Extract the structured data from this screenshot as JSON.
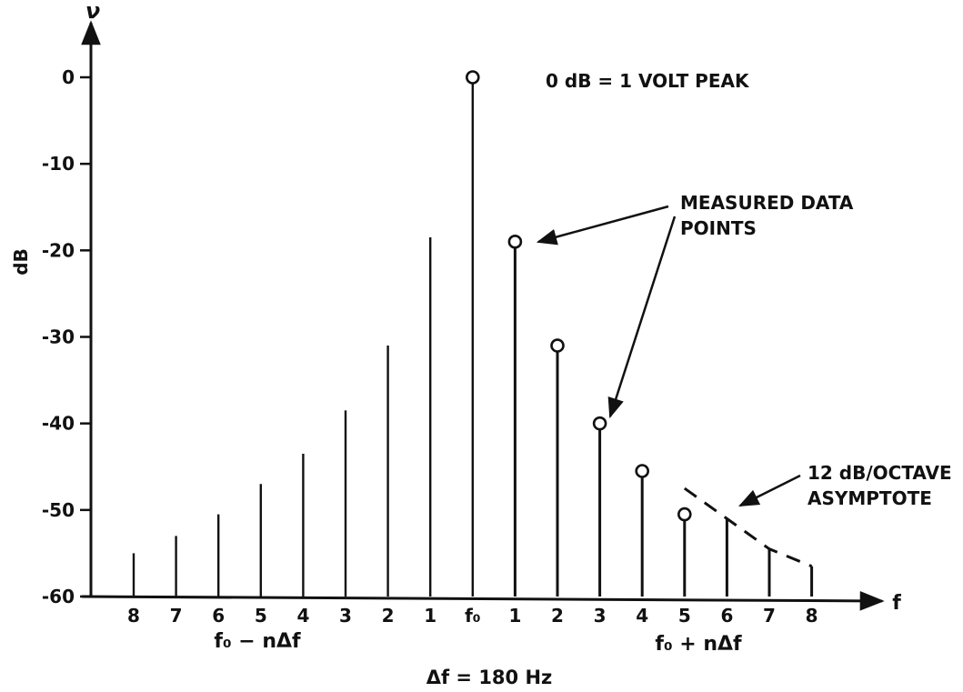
{
  "chart_data": {
    "type": "bar",
    "ylabel": "dB",
    "y_axis_symbol": "ν",
    "x_axis_symbol": "f",
    "ylim": [
      -60,
      0
    ],
    "y_ticks": [
      0,
      -10,
      -20,
      -30,
      -40,
      -50,
      -60
    ],
    "y_tick_labels": [
      "0",
      "-10",
      "-20",
      "-30",
      "-40",
      "-50",
      "-60"
    ],
    "categories": [
      "8",
      "7",
      "6",
      "5",
      "4",
      "3",
      "2",
      "1",
      "f₀",
      "1",
      "2",
      "3",
      "4",
      "5",
      "6",
      "7",
      "8"
    ],
    "values": [
      -55,
      -53,
      -50.5,
      -47,
      -43.5,
      -38.5,
      -31,
      -18.5,
      0,
      -19,
      -31,
      -40,
      -45.5,
      -50.5,
      -51,
      -54.5,
      -56.5
    ],
    "measured_points": [
      {
        "x": "f₀",
        "value": 0
      },
      {
        "x": "1",
        "value": -19
      },
      {
        "x": "2",
        "value": -31
      },
      {
        "x": "3",
        "value": -40
      },
      {
        "x": "4",
        "value": -45.5
      },
      {
        "x": "5",
        "value": -50.5
      }
    ],
    "asymptote": {
      "values": [
        -47.5,
        -51,
        -54.5,
        -56.5
      ]
    },
    "lower_sideband_label": "f₀ − nΔf",
    "upper_sideband_label": "f₀ + nΔf",
    "delta_label": "Δf = 180 Hz",
    "annotations": {
      "reference": "0 dB = 1 VOLT PEAK",
      "measured_line1": "MEASURED DATA",
      "measured_line2": "POINTS",
      "asymptote_line1": "12 dB/OCTAVE",
      "asymptote_line2": "ASYMPTOTE"
    },
    "colors": {
      "ink": "#111111",
      "background": "#ffffff"
    }
  }
}
